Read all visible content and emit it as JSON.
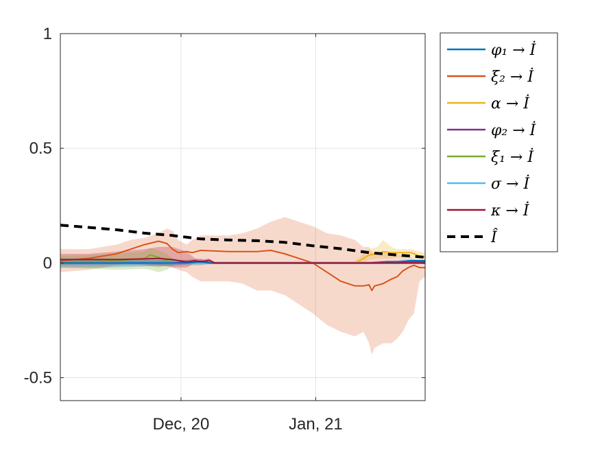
{
  "chart_data": {
    "type": "line",
    "title": "",
    "xlabel": "",
    "ylabel": "",
    "x_ticks": [
      "Dec, 20",
      "Jan, 21"
    ],
    "x_tick_days": [
      43,
      91
    ],
    "x_range_days": [
      0,
      130
    ],
    "ylim": [
      -0.6,
      1
    ],
    "y_ticks": [
      -0.5,
      0,
      0.5,
      1
    ],
    "y_tick_labels": [
      "-0.5",
      "0",
      "0.5",
      "1"
    ],
    "grid": true,
    "legend_position": "outside-right",
    "series": [
      {
        "name": "φ₁ → İ",
        "key": "phi1",
        "color": "#0072BD",
        "style": "solid",
        "x": [
          0,
          15,
          30,
          45,
          50,
          53,
          55,
          110,
          115,
          116,
          120,
          125,
          130
        ],
        "y": [
          0.0,
          0.0,
          0.0,
          0.0,
          0.005,
          0.0,
          0.0,
          0.0,
          0.0,
          0.005,
          0.005,
          0.01,
          0.01
        ],
        "band_upper": [
          0.02,
          0.02,
          0.015,
          0.01,
          0.01,
          0.005,
          0.005,
          0.005,
          0.005,
          0.01,
          0.01,
          0.015,
          0.015
        ],
        "band_lower": [
          -0.02,
          -0.02,
          -0.015,
          -0.01,
          -0.01,
          -0.005,
          -0.005,
          -0.005,
          -0.005,
          -0.005,
          -0.005,
          -0.005,
          -0.005
        ]
      },
      {
        "name": "ξ₂ → İ",
        "key": "xi2",
        "color": "#D95319",
        "style": "solid",
        "x": [
          0,
          10,
          20,
          25,
          30,
          35,
          38,
          40,
          42,
          45,
          47,
          50,
          60,
          65,
          70,
          75,
          80,
          85,
          90,
          95,
          100,
          105,
          108,
          110,
          111,
          112,
          115,
          118,
          120,
          122,
          124,
          126,
          128,
          130
        ],
        "y": [
          0.01,
          0.02,
          0.04,
          0.06,
          0.08,
          0.095,
          0.085,
          0.06,
          0.045,
          0.05,
          0.045,
          0.055,
          0.05,
          0.05,
          0.05,
          0.055,
          0.04,
          0.02,
          0.0,
          -0.04,
          -0.08,
          -0.1,
          -0.1,
          -0.095,
          -0.12,
          -0.1,
          -0.09,
          -0.07,
          -0.06,
          -0.035,
          -0.02,
          -0.01,
          -0.02,
          -0.02
        ],
        "band_upper": [
          0.06,
          0.06,
          0.08,
          0.1,
          0.11,
          0.13,
          0.15,
          0.14,
          0.1,
          0.08,
          0.1,
          0.12,
          0.12,
          0.13,
          0.15,
          0.18,
          0.2,
          0.18,
          0.16,
          0.13,
          0.12,
          0.1,
          0.07,
          0.07,
          0.05,
          0.04,
          0.05,
          0.04,
          0.04,
          0.03,
          0.03,
          0.02,
          0.01,
          0.01
        ],
        "band_lower": [
          -0.04,
          -0.03,
          -0.01,
          0.0,
          -0.01,
          -0.02,
          -0.01,
          -0.02,
          -0.03,
          -0.04,
          -0.06,
          -0.08,
          -0.08,
          -0.09,
          -0.12,
          -0.12,
          -0.14,
          -0.18,
          -0.22,
          -0.27,
          -0.3,
          -0.32,
          -0.3,
          -0.35,
          -0.4,
          -0.37,
          -0.35,
          -0.35,
          -0.33,
          -0.3,
          -0.25,
          -0.22,
          -0.08,
          -0.06
        ]
      },
      {
        "name": "α → İ",
        "key": "alpha",
        "color": "#EDB120",
        "style": "solid",
        "x": [
          0,
          100,
          104,
          105,
          108,
          110,
          113,
          115,
          118,
          120,
          125,
          128,
          130
        ],
        "y": [
          0.0,
          0.0,
          0.0,
          0.0,
          0.02,
          0.035,
          0.04,
          0.05,
          0.045,
          0.045,
          0.045,
          0.03,
          0.025
        ],
        "band_upper": [
          0.005,
          0.005,
          0.005,
          0.01,
          0.04,
          0.06,
          0.07,
          0.1,
          0.07,
          0.06,
          0.06,
          0.05,
          0.045
        ],
        "band_lower": [
          -0.005,
          -0.005,
          -0.005,
          -0.005,
          0.0,
          0.015,
          0.02,
          0.02,
          0.02,
          0.025,
          0.025,
          0.015,
          0.01
        ]
      },
      {
        "name": "φ₂ → İ",
        "key": "phi2",
        "color": "#7E2F8E",
        "style": "solid",
        "x": [
          0,
          40,
          45,
          50,
          52,
          54,
          110,
          115,
          120,
          125,
          130
        ],
        "y": [
          0.0,
          0.0,
          0.005,
          0.008,
          0.004,
          0.0,
          0.0,
          0.004,
          0.005,
          0.006,
          0.006
        ],
        "band_upper": [
          0.01,
          0.01,
          0.015,
          0.02,
          0.01,
          0.005,
          0.005,
          0.01,
          0.01,
          0.012,
          0.012
        ],
        "band_lower": [
          -0.01,
          -0.01,
          -0.005,
          -0.004,
          -0.002,
          -0.005,
          -0.005,
          -0.002,
          -0.002,
          -0.002,
          -0.002
        ]
      },
      {
        "name": "ξ₁ → İ",
        "key": "xi1",
        "color": "#77AC30",
        "style": "solid",
        "x": [
          0,
          10,
          20,
          30,
          32,
          35,
          38,
          40
        ],
        "y": [
          0.005,
          0.005,
          0.01,
          0.02,
          0.035,
          0.025,
          0.01,
          0.005
        ],
        "band_upper": [
          0.03,
          0.035,
          0.04,
          0.05,
          0.065,
          0.055,
          0.04,
          0.02
        ],
        "band_lower": [
          -0.02,
          -0.025,
          -0.03,
          -0.025,
          -0.03,
          -0.04,
          -0.03,
          -0.01
        ]
      },
      {
        "name": "σ → İ",
        "key": "sigma",
        "color": "#4DBEEE",
        "style": "solid",
        "x": [
          0,
          20,
          40,
          60,
          130
        ],
        "y": [
          0.0,
          0.0,
          0.002,
          0.0,
          0.0
        ],
        "band_upper": [
          0.01,
          0.01,
          0.01,
          0.005,
          0.005
        ],
        "band_lower": [
          -0.01,
          -0.01,
          -0.008,
          -0.005,
          -0.005
        ]
      },
      {
        "name": "κ → İ",
        "key": "kappa",
        "color": "#A2142F",
        "style": "solid",
        "x": [
          0,
          10,
          20,
          30,
          35,
          40,
          45,
          48,
          50,
          53,
          55,
          130
        ],
        "y": [
          0.015,
          0.015,
          0.015,
          0.018,
          0.02,
          0.015,
          0.005,
          0.01,
          0.005,
          0.012,
          0.0,
          0.0
        ],
        "band_upper": [
          0.04,
          0.04,
          0.05,
          0.06,
          0.07,
          0.07,
          0.05,
          0.02,
          0.015,
          0.02,
          0.005,
          0.005
        ],
        "band_lower": [
          -0.005,
          -0.005,
          -0.005,
          -0.005,
          -0.01,
          -0.02,
          -0.02,
          0.0,
          -0.005,
          0.0,
          -0.005,
          -0.005
        ]
      },
      {
        "name": "Î",
        "key": "ihat",
        "color": "#000000",
        "style": "dashed",
        "x": [
          0,
          10,
          20,
          30,
          40,
          50,
          60,
          70,
          80,
          90,
          100,
          110,
          120,
          130
        ],
        "y": [
          0.165,
          0.155,
          0.145,
          0.13,
          0.12,
          0.105,
          0.1,
          0.097,
          0.09,
          0.075,
          0.062,
          0.045,
          0.035,
          0.025
        ]
      }
    ]
  }
}
